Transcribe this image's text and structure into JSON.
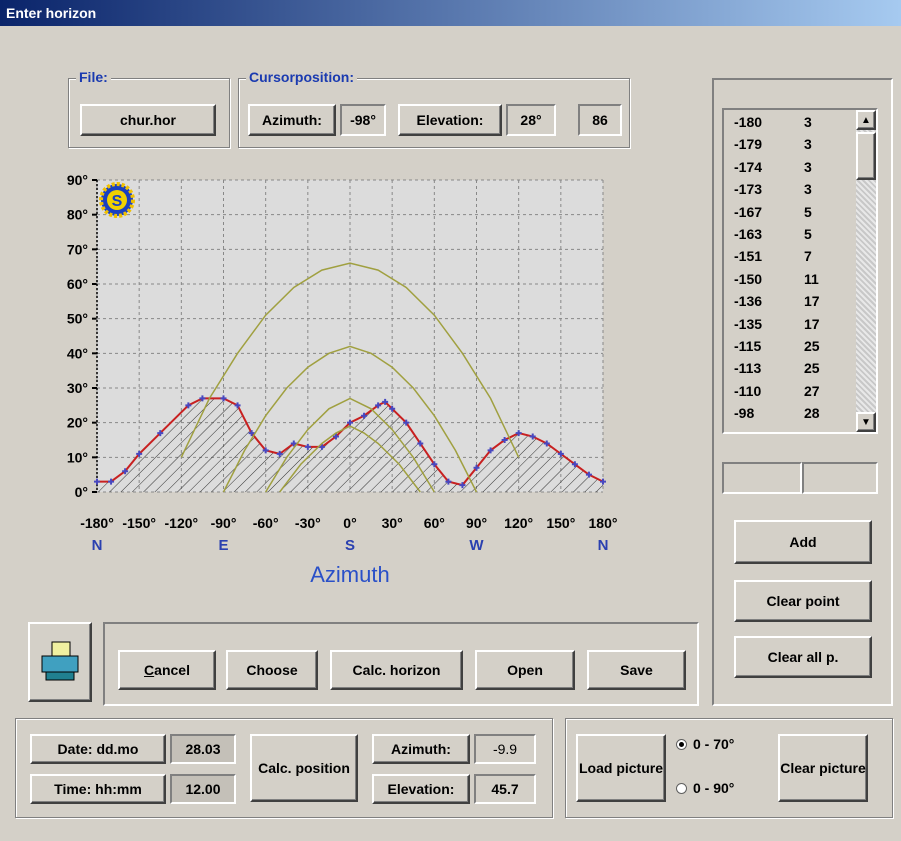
{
  "window": {
    "title": "Enter horizon"
  },
  "file": {
    "label": "File:",
    "button": "chur.hor"
  },
  "cursor": {
    "label": "Cursorposition:",
    "azimuth_label": "Azimuth:",
    "azimuth": "-98°",
    "elevation_label": "Elevation:",
    "elevation": "28°",
    "value": "86"
  },
  "chart_data": {
    "type": "line",
    "xlabel": "Azimuth",
    "icon_label": "S",
    "grid": true,
    "xlim": [
      -180,
      180
    ],
    "ylim": [
      0,
      90
    ],
    "xticks": [
      {
        "value": -180,
        "label": "-180°"
      },
      {
        "value": -150,
        "label": "-150°"
      },
      {
        "value": -120,
        "label": "-120°"
      },
      {
        "value": -90,
        "label": "-90°"
      },
      {
        "value": -60,
        "label": "-60°"
      },
      {
        "value": -30,
        "label": "-30°"
      },
      {
        "value": 0,
        "label": "0°"
      },
      {
        "value": 30,
        "label": "30°"
      },
      {
        "value": 60,
        "label": "60°"
      },
      {
        "value": 90,
        "label": "90°"
      },
      {
        "value": 120,
        "label": "120°"
      },
      {
        "value": 150,
        "label": "150°"
      },
      {
        "value": 180,
        "label": "180°"
      }
    ],
    "yticks": [
      {
        "value": 0,
        "label": "0°"
      },
      {
        "value": 10,
        "label": "10°"
      },
      {
        "value": 20,
        "label": "20°"
      },
      {
        "value": 30,
        "label": "30°"
      },
      {
        "value": 40,
        "label": "40°"
      },
      {
        "value": 50,
        "label": "50°"
      },
      {
        "value": 60,
        "label": "60°"
      },
      {
        "value": 70,
        "label": "70°"
      },
      {
        "value": 80,
        "label": "80°"
      },
      {
        "value": 90,
        "label": "90°"
      }
    ],
    "direction_labels": [
      {
        "value": -180,
        "label": "N"
      },
      {
        "value": -90,
        "label": "E"
      },
      {
        "value": 0,
        "label": "S"
      },
      {
        "value": 90,
        "label": "W"
      },
      {
        "value": 180,
        "label": "N"
      }
    ],
    "series": [
      {
        "color": "#c82020",
        "marker_color": "#4848c0",
        "hatch": true,
        "x": [
          -180,
          -170,
          -160,
          -150,
          -135,
          -115,
          -105,
          -90,
          -80,
          -70,
          -60,
          -50,
          -40,
          -30,
          -20,
          -10,
          0,
          10,
          20,
          25,
          30,
          40,
          50,
          60,
          70,
          80,
          90,
          100,
          110,
          120,
          130,
          140,
          150,
          160,
          170,
          180
        ],
        "values": [
          3,
          3,
          6,
          11,
          17,
          25,
          27,
          27,
          25,
          17,
          12,
          11,
          14,
          13,
          13,
          16,
          20,
          22,
          25,
          26,
          24,
          20,
          14,
          8,
          3,
          2,
          7,
          12,
          15,
          17,
          16,
          14,
          11,
          8,
          5,
          3
        ]
      },
      {
        "color": "#a0a040",
        "x": [
          -120,
          -100,
          -80,
          -60,
          -40,
          -20,
          0,
          20,
          40,
          60,
          80,
          100,
          120
        ],
        "values": [
          10,
          27,
          40,
          51,
          59,
          64,
          66,
          64,
          59,
          51,
          40,
          27,
          10
        ]
      },
      {
        "color": "#a0a040",
        "x": [
          -90,
          -75,
          -60,
          -45,
          -30,
          -15,
          0,
          15,
          30,
          45,
          60,
          75,
          90
        ],
        "values": [
          0,
          12,
          22,
          30,
          36,
          40,
          42,
          40,
          36,
          30,
          22,
          12,
          0
        ]
      },
      {
        "color": "#a0a040",
        "x": [
          -60,
          -45,
          -30,
          -15,
          0,
          15,
          30,
          45,
          60
        ],
        "values": [
          0,
          10,
          18,
          24,
          27,
          24,
          18,
          10,
          0
        ]
      },
      {
        "color": "#a0a040",
        "x": [
          -50,
          -35,
          -20,
          -10,
          0,
          10,
          20,
          35,
          50
        ],
        "values": [
          0,
          8,
          14,
          17,
          19,
          17,
          14,
          8,
          0
        ]
      }
    ]
  },
  "point_list": {
    "rows": [
      [
        "-180",
        "3"
      ],
      [
        "-179",
        "3"
      ],
      [
        "-174",
        "3"
      ],
      [
        "-173",
        "3"
      ],
      [
        "-167",
        "5"
      ],
      [
        "-163",
        "5"
      ],
      [
        "-151",
        "7"
      ],
      [
        "-150",
        "11"
      ],
      [
        "-136",
        "17"
      ],
      [
        "-135",
        "17"
      ],
      [
        "-115",
        "25"
      ],
      [
        "-113",
        "25"
      ],
      [
        "-110",
        "27"
      ],
      [
        "-98",
        "28"
      ]
    ]
  },
  "list_buttons": {
    "add": "Add",
    "clear_point": "Clear point",
    "clear_all": "Clear all p."
  },
  "actions": {
    "cancel": "Cancel",
    "choose": "Choose",
    "calc_horizon": "Calc. horizon",
    "open": "Open",
    "save": "Save"
  },
  "position": {
    "date_label": "Date: dd.mo",
    "date": "28.03",
    "time_label": "Time: hh:mm",
    "time": "12.00",
    "calc_button": "Calc. position",
    "azimuth_label": "Azimuth:",
    "azimuth": "-9.9",
    "elevation_label": "Elevation:",
    "elevation": "45.7"
  },
  "picture": {
    "load_button": "Load picture",
    "option_70": "0 - 70°",
    "option_90": "0 - 90°",
    "clear_button": "Clear picture"
  }
}
